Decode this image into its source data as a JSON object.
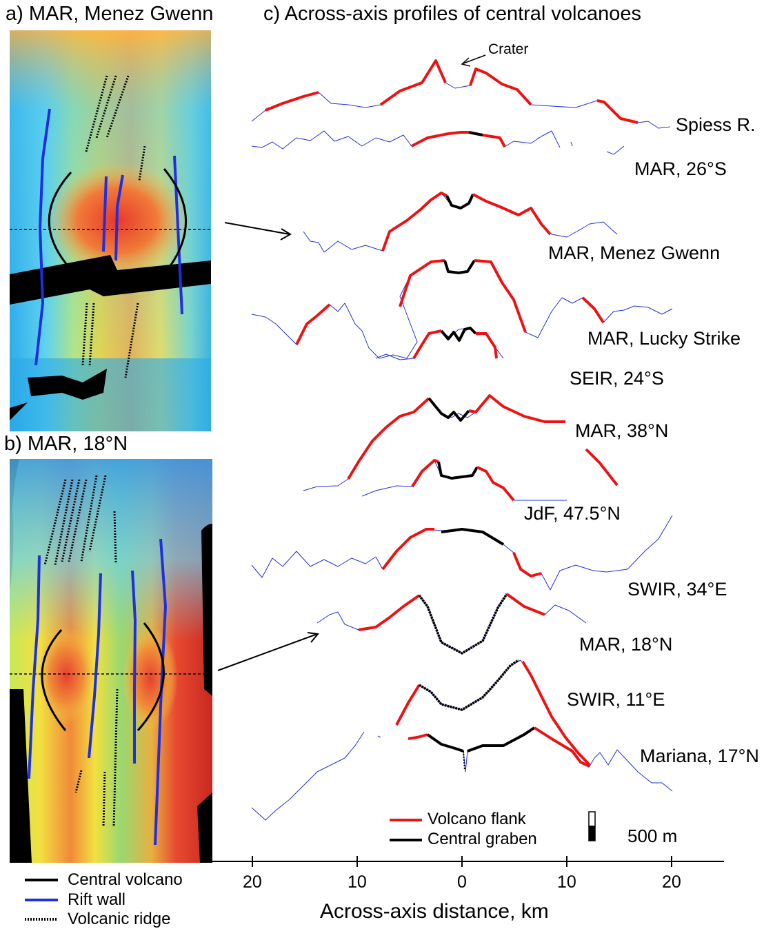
{
  "panels": {
    "a": {
      "title": "a) MAR, Menez Gwenn"
    },
    "b": {
      "title": "b) MAR, 18°N"
    },
    "c": {
      "title": "c) Across-axis profiles of central volcanoes"
    }
  },
  "map_legend": [
    {
      "label": "Central volcano",
      "color": "#000000",
      "style": "solid"
    },
    {
      "label": "Rift wall",
      "color": "#1f2fe0",
      "style": "solid"
    },
    {
      "label": "Volcanic ridge",
      "color": "#000000",
      "style": "dotted"
    }
  ],
  "profiles": [
    {
      "label": "Spiess R."
    },
    {
      "label": "MAR, 26°S"
    },
    {
      "label": "MAR, Menez Gwenn"
    },
    {
      "label": "MAR, Lucky Strike"
    },
    {
      "label": "SEIR, 24°S"
    },
    {
      "label": "MAR, 38°N"
    },
    {
      "label": "JdF, 47.5°N"
    },
    {
      "label": "SWIR, 34°E"
    },
    {
      "label": "MAR, 18°N"
    },
    {
      "label": "SWIR, 11°E"
    },
    {
      "label": "Mariana, 17°N"
    }
  ],
  "annotation": {
    "crater": "Crater"
  },
  "profile_legend": {
    "flank": "Volcano flank",
    "graben": "Central graben",
    "flank_color": "#ee1111",
    "graben_color": "#000000",
    "scale": "500 m"
  },
  "axis": {
    "xlabel": "Across-axis distance, km",
    "ticks": [
      "20",
      "10",
      "0",
      "10",
      "20"
    ]
  }
}
